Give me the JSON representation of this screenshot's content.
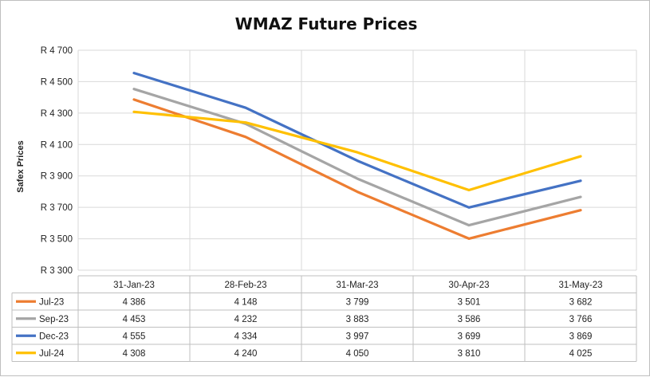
{
  "chart_data": {
    "type": "line",
    "title": "WMAZ Future Prices",
    "xlabel": "",
    "ylabel": "Safex Prices",
    "ylim": [
      3300,
      4700
    ],
    "yticks": [
      "R 3 300",
      "R 3 500",
      "R 3 700",
      "R 3 900",
      "R 4 100",
      "R 4 300",
      "R 4 500",
      "R 4 700"
    ],
    "ytick_values": [
      3300,
      3500,
      3700,
      3900,
      4100,
      4300,
      4500,
      4700
    ],
    "grid": true,
    "legend": "data-table",
    "categories": [
      "31-Jan-23",
      "28-Feb-23",
      "31-Mar-23",
      "30-Apr-23",
      "31-May-23"
    ],
    "series": [
      {
        "name": "Jul-23",
        "color": "#ed7d31",
        "values": [
          4386,
          4148,
          3799,
          3501,
          3682
        ],
        "labels": [
          "4 386",
          "4 148",
          "3 799",
          "3 501",
          "3 682"
        ]
      },
      {
        "name": "Sep-23",
        "color": "#a5a5a5",
        "values": [
          4453,
          4232,
          3883,
          3586,
          3766
        ],
        "labels": [
          "4 453",
          "4 232",
          "3 883",
          "3 586",
          "3 766"
        ]
      },
      {
        "name": "Dec-23",
        "color": "#4472c4",
        "values": [
          4555,
          4334,
          3997,
          3699,
          3869
        ],
        "labels": [
          "4 555",
          "4 334",
          "3 997",
          "3 699",
          "3 869"
        ]
      },
      {
        "name": "Jul-24",
        "color": "#ffc000",
        "values": [
          4308,
          4240,
          4050,
          3810,
          4025
        ],
        "labels": [
          "4 308",
          "4 240",
          "4 050",
          "3 810",
          "4 025"
        ]
      }
    ]
  }
}
